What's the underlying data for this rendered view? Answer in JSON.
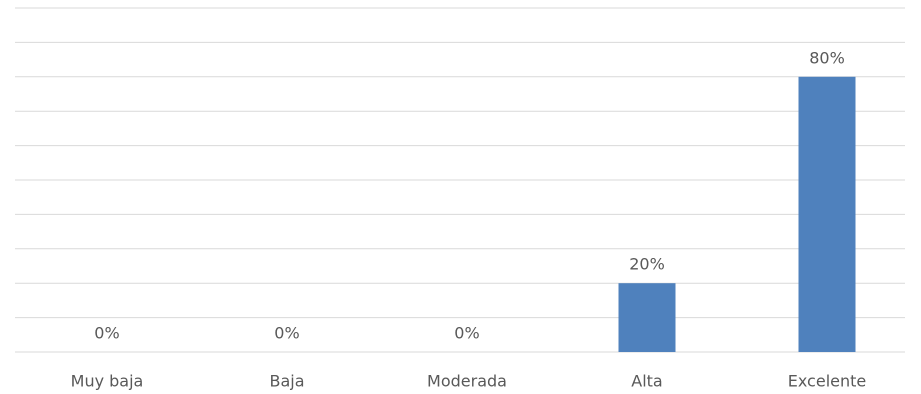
{
  "chart_data": {
    "type": "bar",
    "categories": [
      "Muy baja",
      "Baja",
      "Moderada",
      "Alta",
      "Excelente"
    ],
    "values": [
      0,
      0,
      0,
      20,
      80
    ],
    "value_labels": [
      "0%",
      "0%",
      "0%",
      "20%",
      "80%"
    ],
    "color": "#4f81bd",
    "ylim": [
      0,
      100
    ],
    "yticks": [
      0,
      10,
      20,
      30,
      40,
      50,
      60,
      70,
      80,
      90,
      100
    ],
    "grid": true
  }
}
